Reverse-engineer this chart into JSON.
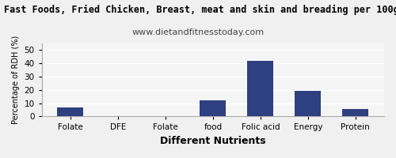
{
  "title": "Fast Foods, Fried Chicken, Breast, meat and skin and breading per 100g",
  "subtitle": "www.dietandfitnesstoday.com",
  "categories": [
    "Folate",
    "DFE",
    "Folate",
    "food",
    "Folic acid",
    "Energy",
    "Protein"
  ],
  "values": [
    7,
    0,
    0,
    12,
    42,
    19,
    5.5
  ],
  "bar_color": "#2e4080",
  "xlabel": "Different Nutrients",
  "ylabel": "Percentage of RDH (%)",
  "ylim": [
    0,
    55
  ],
  "yticks": [
    0,
    10,
    20,
    30,
    40,
    50
  ],
  "background_color": "#f0f0f0",
  "plot_bg_color": "#f5f5f5",
  "title_fontsize": 8.5,
  "subtitle_fontsize": 8,
  "xlabel_fontsize": 9,
  "ylabel_fontsize": 7,
  "tick_fontsize": 7.5,
  "bar_width": 0.55,
  "grid_color": "#ffffff",
  "title_color": "#000000",
  "subtitle_color": "#444444"
}
